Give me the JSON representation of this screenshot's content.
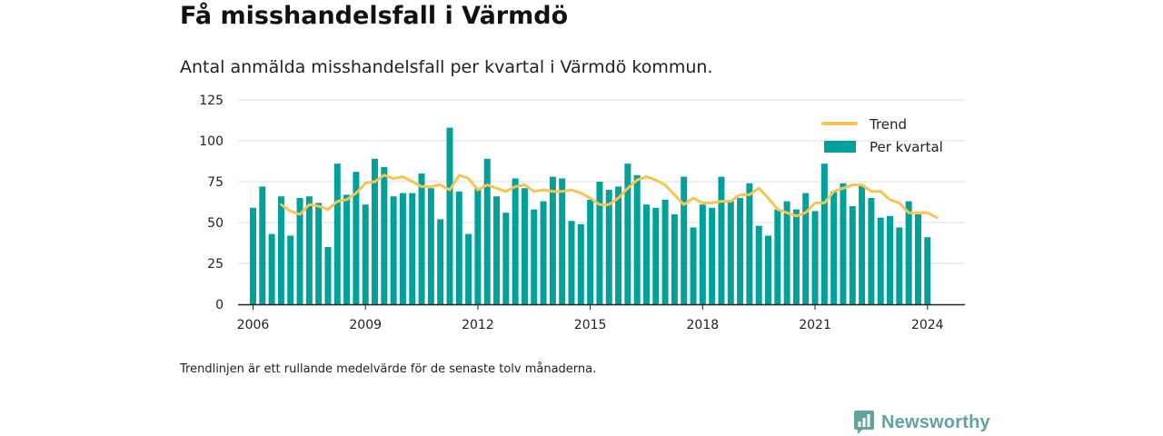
{
  "title": "Få misshandelsfall i Värmdö",
  "subtitle": "Antal anmälda misshandelsfall per kvartal i Värmdö kommun.",
  "footnote": "Trendlinjen är ett rullande medelvärde för de senaste tolv månaderna.",
  "brand": {
    "name": "Newsworthy",
    "color": "#5fa59d"
  },
  "colors": {
    "bar": "#00a19a",
    "trend": "#f6c451",
    "grid": "#dddddd",
    "axis": "#222222"
  },
  "chart_data": {
    "type": "bar",
    "title": "",
    "xlabel": "",
    "ylabel": "",
    "ylim": [
      0,
      125
    ],
    "yticks": [
      0,
      25,
      50,
      75,
      100,
      125
    ],
    "xticks": [
      2006,
      2009,
      2012,
      2015,
      2018,
      2021,
      2024
    ],
    "xlim": [
      2005.6,
      2025.0
    ],
    "grid": true,
    "legend_position": "top-right",
    "series": [
      {
        "name": "Per kvartal",
        "type": "bar",
        "x_start": 2006.0,
        "step": 0.25,
        "values": [
          59,
          72,
          43,
          66,
          42,
          65,
          66,
          62,
          35,
          86,
          67,
          81,
          61,
          89,
          84,
          66,
          68,
          68,
          80,
          71,
          52,
          108,
          69,
          43,
          71,
          89,
          66,
          56,
          77,
          71,
          58,
          63,
          78,
          77,
          51,
          49,
          64,
          75,
          70,
          72,
          86,
          79,
          61,
          59,
          64,
          55,
          78,
          47,
          61,
          59,
          78,
          63,
          65,
          74,
          48,
          42,
          58,
          63,
          58,
          68,
          57,
          86,
          69,
          74,
          60,
          73,
          65,
          53,
          54,
          47,
          63,
          55,
          41
        ]
      },
      {
        "name": "Trend",
        "type": "line",
        "x_start": 2006.75,
        "step": 0.25,
        "values": [
          61,
          57,
          55,
          61,
          60,
          58,
          63,
          64,
          68,
          74,
          75,
          79,
          77,
          78,
          75,
          72,
          72,
          73,
          70,
          79,
          77,
          70,
          73,
          71,
          69,
          72,
          73,
          69,
          70,
          69,
          69,
          70,
          68,
          65,
          61,
          61,
          65,
          71,
          76,
          78,
          76,
          73,
          67,
          61,
          65,
          62,
          62,
          63,
          63,
          67,
          67,
          71,
          65,
          58,
          56,
          54,
          56,
          62,
          62,
          69,
          71,
          73,
          73,
          69,
          69,
          64,
          62,
          56,
          56,
          56,
          53
        ]
      }
    ]
  }
}
